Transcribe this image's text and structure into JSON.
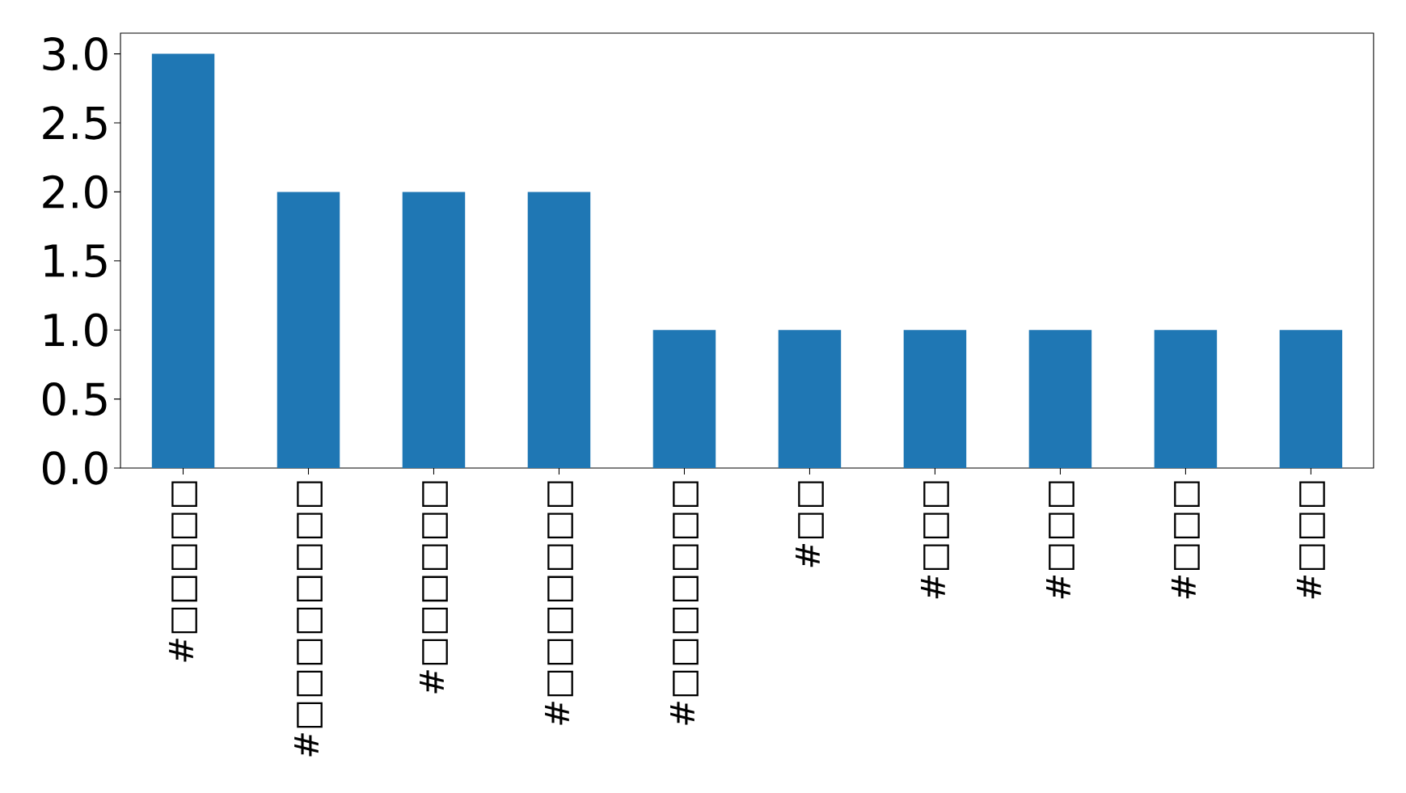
{
  "chart_data": {
    "type": "bar",
    "categories": [
      "#□□□□□",
      "#□□□□□□□□",
      "#□□□□□□",
      "#□□□□□□□",
      "#□□□□□□□",
      "#□□",
      "#□□□",
      "#□□□",
      "#□□□",
      "#□□□"
    ],
    "values": [
      3,
      2,
      2,
      2,
      1,
      1,
      1,
      1,
      1,
      1
    ],
    "color": "#1f77b4",
    "ylim": [
      0,
      3.15
    ],
    "grid": false,
    "yticks": [
      {
        "value": 0,
        "label": "0.0"
      },
      {
        "value": 0.5,
        "label": "0.5"
      },
      {
        "value": 1,
        "label": "1.0"
      },
      {
        "value": 1.5,
        "label": "1.5"
      },
      {
        "value": 2,
        "label": "2.0"
      },
      {
        "value": 2.5,
        "label": "2.5"
      },
      {
        "value": 3,
        "label": "3.0"
      }
    ]
  }
}
